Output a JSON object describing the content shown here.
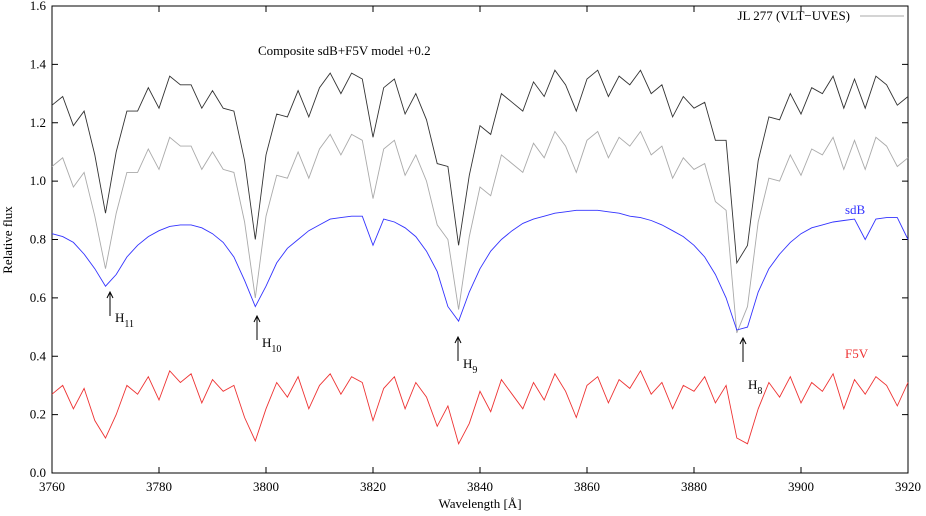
{
  "chart_data": {
    "type": "line",
    "x_label": "Wavelength [Å]",
    "y_label": "Relative flux",
    "xlim": [
      3760,
      3920
    ],
    "xticks": [
      3760,
      3780,
      3800,
      3820,
      3840,
      3860,
      3880,
      3900,
      3920
    ],
    "ylim": [
      0,
      1.6
    ],
    "yticks": [
      {
        "value": 0,
        "label": "0.0"
      },
      0.2,
      0.4,
      0.6,
      0.8,
      {
        "value": 1,
        "label": "1.0"
      },
      1.2,
      1.4,
      1.6
    ],
    "legend": "top-right",
    "annotations": [
      "Composite sdB+F5V model +0.2",
      "sdB",
      "F5V"
    ],
    "lines": [
      {
        "label": "H",
        "sub": "11"
      },
      {
        "label": "H",
        "sub": "10"
      },
      {
        "label": "H",
        "sub": "9"
      },
      {
        "label": "H",
        "sub": "8"
      }
    ],
    "x": [
      3760,
      3762,
      3764,
      3766,
      3768,
      3770,
      3772,
      3774,
      3776,
      3778,
      3780,
      3782,
      3784,
      3786,
      3788,
      3790,
      3792,
      3794,
      3796,
      3798,
      3800,
      3802,
      3804,
      3806,
      3808,
      3810,
      3812,
      3814,
      3816,
      3818,
      3820,
      3822,
      3824,
      3826,
      3828,
      3830,
      3832,
      3834,
      3836,
      3838,
      3840,
      3842,
      3844,
      3846,
      3848,
      3850,
      3852,
      3854,
      3856,
      3858,
      3860,
      3862,
      3864,
      3866,
      3868,
      3870,
      3872,
      3874,
      3876,
      3878,
      3880,
      3882,
      3884,
      3886,
      3888,
      3890,
      3892,
      3894,
      3896,
      3898,
      3900,
      3902,
      3904,
      3906,
      3908,
      3910,
      3912,
      3914,
      3916,
      3918,
      3920
    ],
    "series": [
      {
        "name": "JL 277 (VLT−UVES)",
        "color": "#aaaaaa",
        "values": [
          1.05,
          1.08,
          0.98,
          1.03,
          0.88,
          0.7,
          0.89,
          1.03,
          1.03,
          1.11,
          1.04,
          1.15,
          1.12,
          1.12,
          1.04,
          1.1,
          1.04,
          1.03,
          0.86,
          0.6,
          0.88,
          1.02,
          1.01,
          1.1,
          1.01,
          1.11,
          1.16,
          1.09,
          1.16,
          1.14,
          0.94,
          1.11,
          1.14,
          1.02,
          1.09,
          1.0,
          0.85,
          0.8,
          0.56,
          0.81,
          0.98,
          0.95,
          1.09,
          1.06,
          1.03,
          1.13,
          1.08,
          1.17,
          1.12,
          1.03,
          1.14,
          1.17,
          1.08,
          1.15,
          1.12,
          1.17,
          1.09,
          1.12,
          1.01,
          1.08,
          1.04,
          1.06,
          0.93,
          0.9,
          0.48,
          0.57,
          0.86,
          1.01,
          1.0,
          1.09,
          1.02,
          1.11,
          1.09,
          1.15,
          1.04,
          1.14,
          1.04,
          1.15,
          1.12,
          1.05,
          1.08
        ]
      },
      {
        "color": "#333333",
        "values": [
          1.26,
          1.29,
          1.19,
          1.24,
          1.09,
          0.89,
          1.1,
          1.24,
          1.24,
          1.32,
          1.25,
          1.36,
          1.33,
          1.33,
          1.25,
          1.31,
          1.25,
          1.24,
          1.07,
          0.8,
          1.09,
          1.23,
          1.22,
          1.31,
          1.22,
          1.32,
          1.37,
          1.3,
          1.37,
          1.35,
          1.15,
          1.32,
          1.35,
          1.23,
          1.3,
          1.21,
          1.06,
          1.05,
          0.78,
          1.02,
          1.19,
          1.16,
          1.3,
          1.27,
          1.24,
          1.34,
          1.29,
          1.38,
          1.33,
          1.24,
          1.35,
          1.38,
          1.29,
          1.36,
          1.33,
          1.38,
          1.3,
          1.33,
          1.22,
          1.29,
          1.25,
          1.27,
          1.14,
          1.14,
          0.72,
          0.78,
          1.07,
          1.22,
          1.21,
          1.3,
          1.23,
          1.32,
          1.3,
          1.36,
          1.25,
          1.35,
          1.25,
          1.36,
          1.33,
          1.26,
          1.29
        ]
      },
      {
        "color": "#3333ff",
        "values": [
          0.82,
          0.81,
          0.79,
          0.75,
          0.7,
          0.64,
          0.68,
          0.74,
          0.78,
          0.81,
          0.83,
          0.845,
          0.85,
          0.85,
          0.84,
          0.82,
          0.79,
          0.74,
          0.66,
          0.57,
          0.64,
          0.72,
          0.77,
          0.8,
          0.83,
          0.85,
          0.87,
          0.875,
          0.88,
          0.88,
          0.78,
          0.87,
          0.86,
          0.84,
          0.81,
          0.76,
          0.69,
          0.57,
          0.52,
          0.62,
          0.7,
          0.76,
          0.8,
          0.83,
          0.855,
          0.87,
          0.88,
          0.89,
          0.895,
          0.9,
          0.9,
          0.9,
          0.895,
          0.89,
          0.88,
          0.875,
          0.865,
          0.85,
          0.83,
          0.81,
          0.78,
          0.74,
          0.68,
          0.6,
          0.49,
          0.5,
          0.62,
          0.7,
          0.75,
          0.79,
          0.82,
          0.84,
          0.85,
          0.86,
          0.865,
          0.87,
          0.8,
          0.87,
          0.875,
          0.875,
          0.8
        ]
      },
      {
        "color": "#ee3333",
        "values": [
          0.27,
          0.3,
          0.22,
          0.29,
          0.18,
          0.12,
          0.2,
          0.3,
          0.27,
          0.33,
          0.25,
          0.35,
          0.31,
          0.34,
          0.24,
          0.32,
          0.28,
          0.3,
          0.19,
          0.11,
          0.22,
          0.31,
          0.26,
          0.33,
          0.22,
          0.3,
          0.34,
          0.27,
          0.33,
          0.31,
          0.18,
          0.29,
          0.33,
          0.22,
          0.31,
          0.26,
          0.16,
          0.23,
          0.1,
          0.17,
          0.28,
          0.21,
          0.32,
          0.27,
          0.22,
          0.31,
          0.25,
          0.34,
          0.28,
          0.19,
          0.3,
          0.33,
          0.24,
          0.32,
          0.29,
          0.35,
          0.27,
          0.31,
          0.22,
          0.3,
          0.28,
          0.33,
          0.24,
          0.3,
          0.12,
          0.1,
          0.22,
          0.31,
          0.26,
          0.33,
          0.24,
          0.31,
          0.28,
          0.34,
          0.22,
          0.32,
          0.27,
          0.33,
          0.3,
          0.23,
          0.31
        ]
      }
    ]
  }
}
